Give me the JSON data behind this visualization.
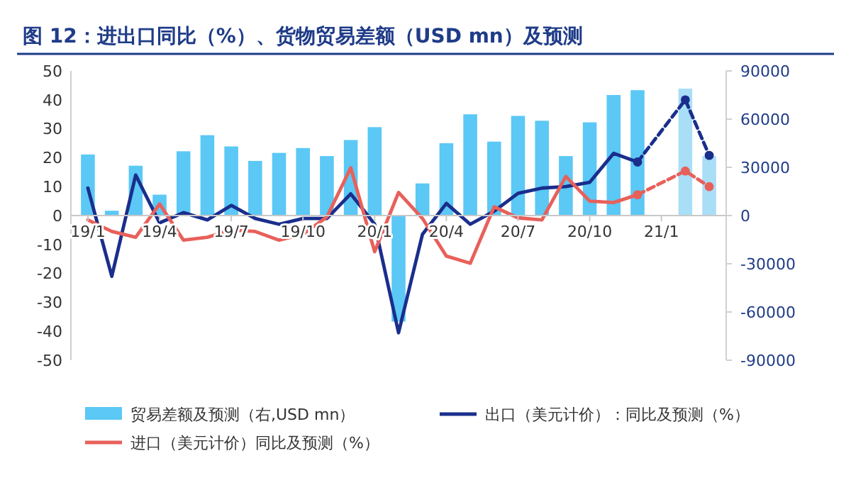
{
  "chart_data": {
    "type": "bar",
    "title": "图 12：进出口同比（%）、货物贸易差额（USD mn）及预测",
    "categories": [
      "19/1",
      null,
      null,
      "19/4",
      null,
      null,
      "19/7",
      null,
      null,
      "19/10",
      null,
      null,
      "20/1",
      null,
      null,
      "20/4",
      null,
      null,
      "20/7",
      null,
      null,
      "20/10",
      null,
      null,
      "21/1",
      null,
      null
    ],
    "series": [
      {
        "name": "贸易差额及预测（右,USD mn）",
        "axis": "y2",
        "color": "#5bc8f5",
        "values": [
          38000,
          3000,
          31000,
          13000,
          40000,
          50000,
          43000,
          34000,
          39000,
          42000,
          37000,
          47000,
          55000,
          -66000,
          20000,
          45000,
          63000,
          46000,
          62000,
          59000,
          37000,
          58000,
          75000,
          78000,
          null,
          79000,
          37000
        ],
        "colors": [
          "#5bc8f5",
          "#5bc8f5",
          "#5bc8f5",
          "#5bc8f5",
          "#5bc8f5",
          "#5bc8f5",
          "#5bc8f5",
          "#5bc8f5",
          "#5bc8f5",
          "#5bc8f5",
          "#5bc8f5",
          "#5bc8f5",
          "#5bc8f5",
          "#5bc8f5",
          "#5bc8f5",
          "#5bc8f5",
          "#5bc8f5",
          "#5bc8f5",
          "#5bc8f5",
          "#5bc8f5",
          "#5bc8f5",
          "#5bc8f5",
          "#5bc8f5",
          "#5bc8f5",
          null,
          "#a9def7",
          "#a9def7"
        ]
      },
      {
        "name": "出口（美元计价）：同比及预测（%）",
        "type": "line",
        "color": "#1a2e8c",
        "line_style": "solid",
        "values": [
          9.5,
          -21,
          14,
          -2.5,
          1,
          -1.5,
          3.5,
          -1,
          -3,
          -1,
          -1,
          7.5,
          -3,
          -40.5,
          -6.5,
          4.2,
          -3,
          1.5,
          7.7,
          9.5,
          10,
          11.5,
          21.5,
          18.5,
          null,
          null,
          null
        ]
      },
      {
        "name": "进口（美元计价）同比及预测（%）",
        "type": "line",
        "color": "#e8605a",
        "line_style": "solid",
        "values": [
          -1.5,
          -5.5,
          -7.5,
          4,
          -8.5,
          -7.5,
          -5,
          -5.5,
          -8.5,
          -6.5,
          -0.5,
          16.5,
          -12.5,
          8,
          -1,
          -14,
          -16.5,
          3,
          -0.8,
          -1.5,
          13.5,
          5,
          4.5,
          7.2,
          null,
          null,
          null
        ]
      },
      {
        "type": "line",
        "color": "#1a2e8c",
        "line_style": "dashed",
        "marker": "circle",
        "values": [
          null,
          null,
          null,
          null,
          null,
          null,
          null,
          null,
          null,
          null,
          null,
          null,
          null,
          null,
          null,
          null,
          null,
          null,
          null,
          null,
          null,
          null,
          null,
          18.5,
          null,
          40,
          20.8
        ]
      },
      {
        "type": "line",
        "color": "#e8605a",
        "line_style": "dashed",
        "marker": "circle",
        "values": [
          null,
          null,
          null,
          null,
          null,
          null,
          null,
          null,
          null,
          null,
          null,
          null,
          null,
          null,
          null,
          null,
          null,
          null,
          null,
          null,
          null,
          null,
          null,
          7.2,
          null,
          15.4,
          10
        ]
      }
    ],
    "ylim": [
      -50,
      50
    ],
    "yticks": [
      -50,
      -40,
      -30,
      -20,
      -10,
      0,
      10,
      20,
      30,
      40,
      50
    ],
    "y2lim": [
      -90000,
      90000
    ],
    "y2ticks": [
      -90000,
      -60000,
      -30000,
      0,
      30000,
      60000,
      90000
    ],
    "grid": false,
    "legend": "bottom"
  }
}
